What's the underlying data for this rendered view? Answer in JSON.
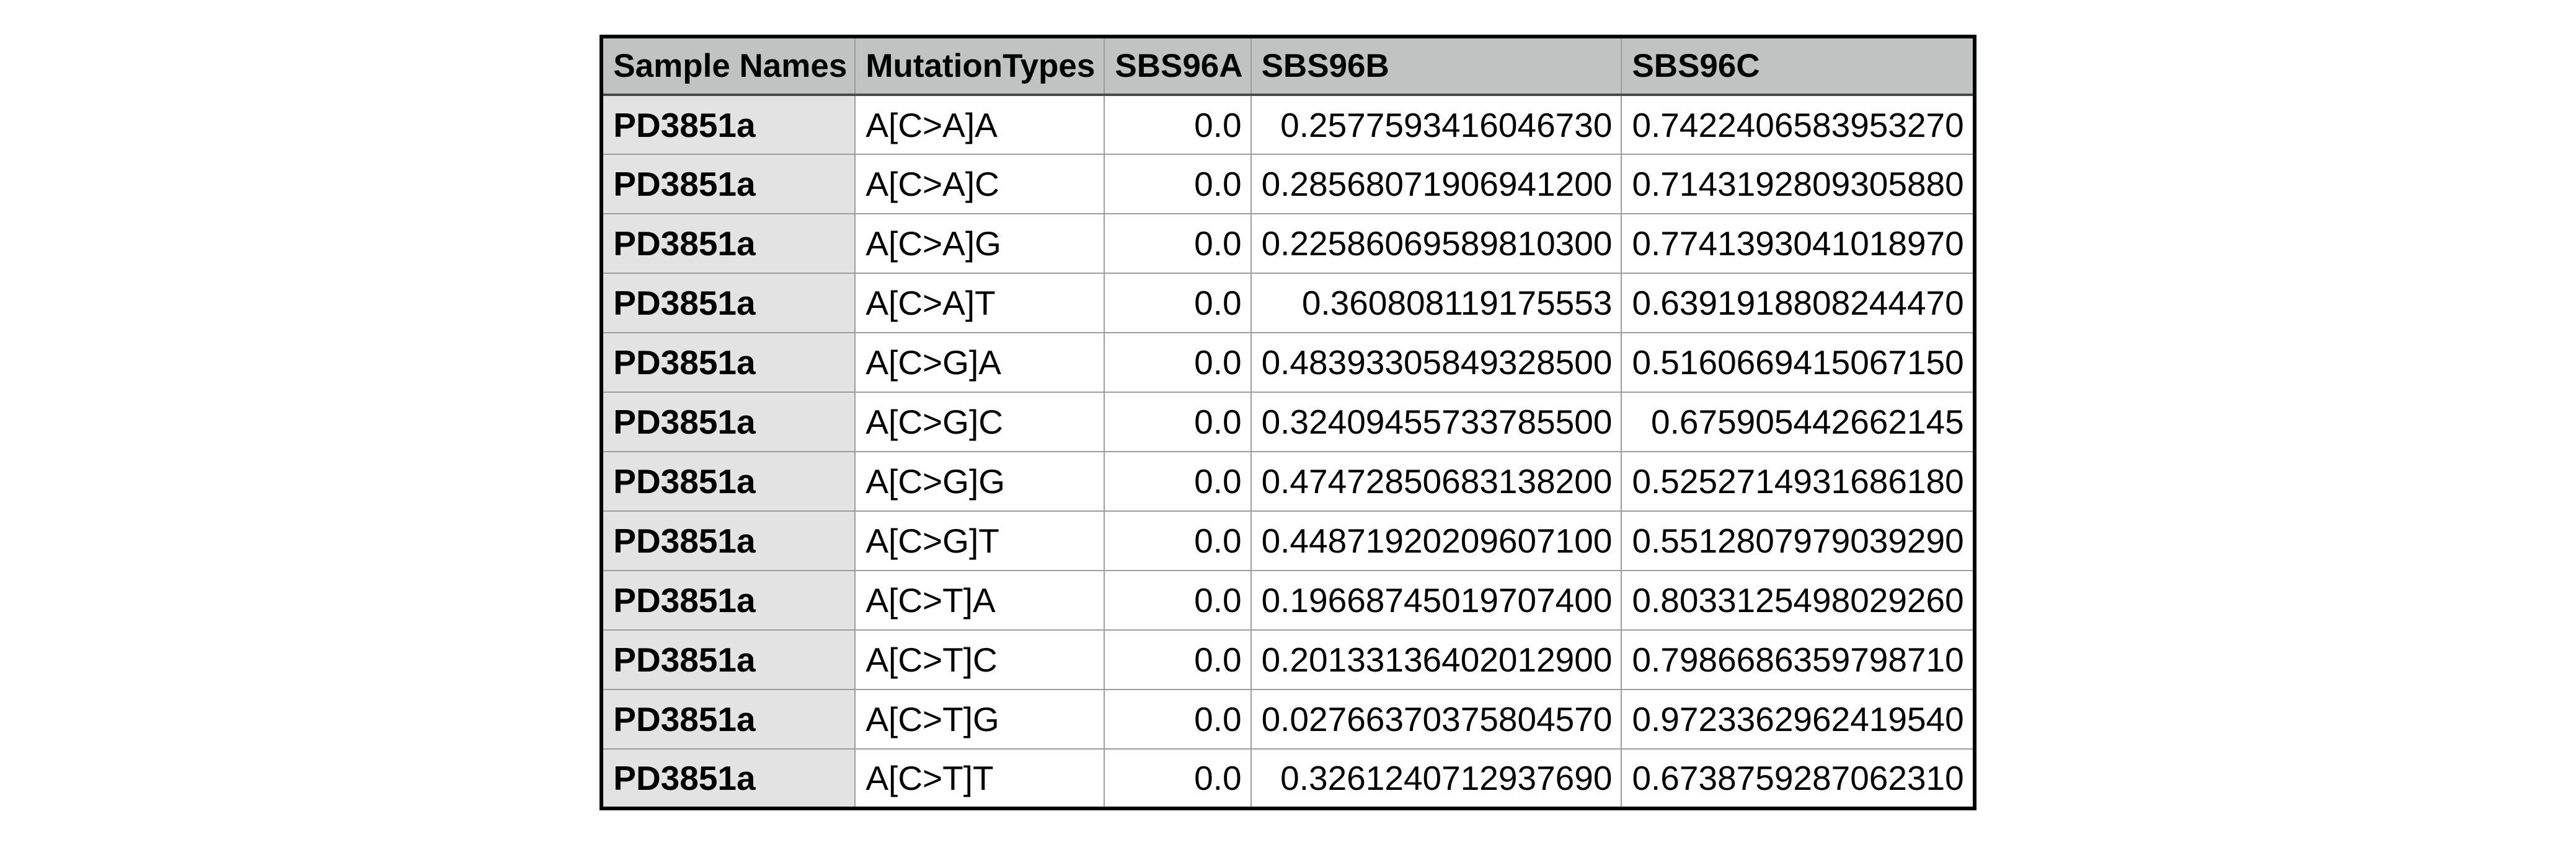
{
  "table": {
    "columns": [
      "Sample Names",
      "MutationTypes",
      "SBS96A",
      "SBS96B",
      "SBS96C"
    ],
    "rows": [
      [
        "PD3851a",
        "A[C>A]A",
        "0.0",
        "0.2577593416046730",
        "0.7422406583953270"
      ],
      [
        "PD3851a",
        "A[C>A]C",
        "0.0",
        "0.28568071906941200",
        "0.7143192809305880"
      ],
      [
        "PD3851a",
        "A[C>A]G",
        "0.0",
        "0.22586069589810300",
        "0.7741393041018970"
      ],
      [
        "PD3851a",
        "A[C>A]T",
        "0.0",
        "0.360808119175553",
        "0.6391918808244470"
      ],
      [
        "PD3851a",
        "A[C>G]A",
        "0.0",
        "0.48393305849328500",
        "0.5160669415067150"
      ],
      [
        "PD3851a",
        "A[C>G]C",
        "0.0",
        "0.32409455733785500",
        "0.675905442662145"
      ],
      [
        "PD3851a",
        "A[C>G]G",
        "0.0",
        "0.47472850683138200",
        "0.5252714931686180"
      ],
      [
        "PD3851a",
        "A[C>G]T",
        "0.0",
        "0.44871920209607100",
        "0.5512807979039290"
      ],
      [
        "PD3851a",
        "A[C>T]A",
        "0.0",
        "0.19668745019707400",
        "0.8033125498029260"
      ],
      [
        "PD3851a",
        "A[C>T]C",
        "0.0",
        "0.20133136402012900",
        "0.7986686359798710"
      ],
      [
        "PD3851a",
        "A[C>T]G",
        "0.0",
        "0.02766370375804570",
        "0.9723362962419540"
      ],
      [
        "PD3851a",
        "A[C>T]T",
        "0.0",
        "0.3261240712937690",
        "0.6738759287062310"
      ]
    ]
  },
  "colors": {
    "header_bg": "#c1c3c2",
    "sample_col_bg": "#e2e3e2",
    "cell_bg": "#ffffff",
    "outer_border": "#000000",
    "grid_line": "#9c9e9d",
    "header_underline": "#4a4a4a",
    "text": "#000000"
  }
}
